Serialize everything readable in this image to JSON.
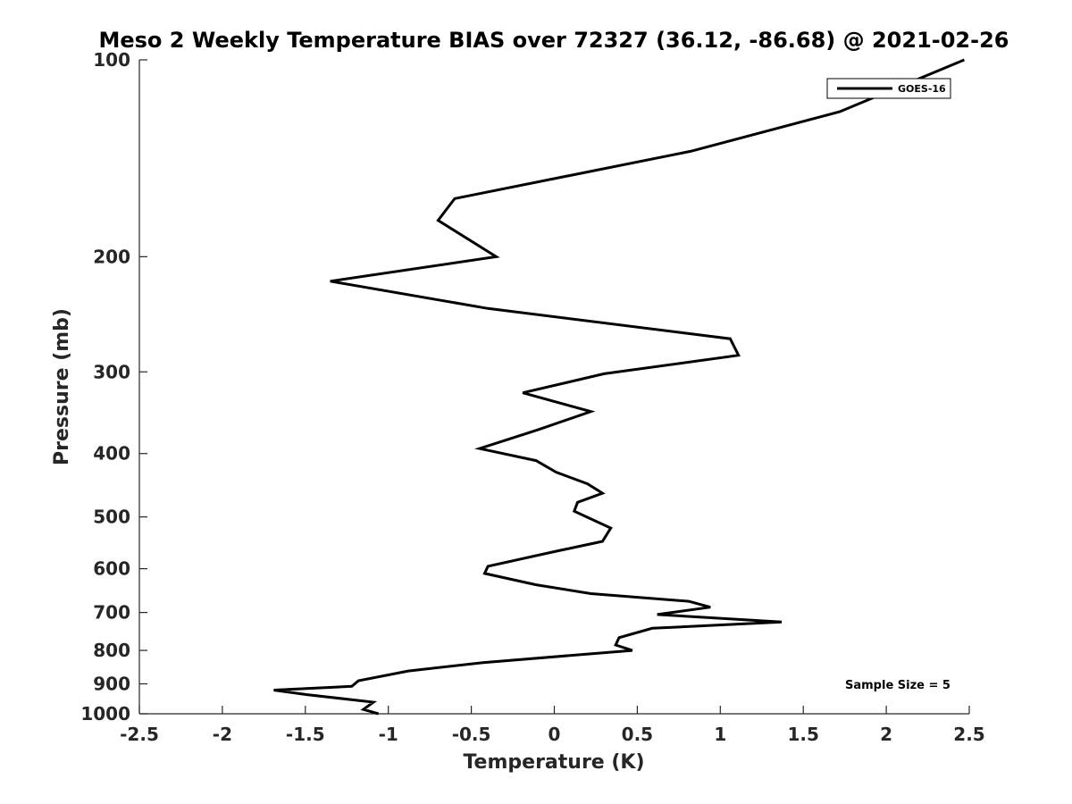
{
  "chart_data": {
    "type": "line",
    "title": "Meso 2 Weekly Temperature BIAS over 72327 (36.12, -86.68) @ 2021-02-26",
    "xlabel": "Temperature (K)",
    "ylabel": "Pressure (mb)",
    "xlim": [
      -2.5,
      2.5
    ],
    "ylim": [
      100,
      1000
    ],
    "y_scale": "log",
    "y_reversed": true,
    "grid": false,
    "x_ticks": [
      -2.5,
      -2,
      -1.5,
      -1,
      -0.5,
      0,
      0.5,
      1,
      1.5,
      2,
      2.5
    ],
    "x_tick_labels": [
      "-2.5",
      "-2",
      "-1.5",
      "-1",
      "-0.5",
      "0",
      "0.5",
      "1",
      "1.5",
      "2",
      "2.5"
    ],
    "y_ticks": [
      100,
      200,
      300,
      400,
      500,
      600,
      700,
      800,
      900,
      1000
    ],
    "y_tick_labels": [
      "100",
      "200",
      "300",
      "400",
      "500",
      "600",
      "700",
      "800",
      "900",
      "1000"
    ],
    "legend_position": "top-right",
    "annotation": "Sample Size = 5",
    "series": [
      {
        "name": "GOES-16",
        "color": "#000000",
        "x": [
          2.47,
          1.72,
          0.82,
          -0.6,
          -0.7,
          -0.35,
          -1.35,
          -0.4,
          1.06,
          1.11,
          0.3,
          -0.19,
          0.22,
          -0.1,
          -0.45,
          -0.11,
          0.01,
          0.2,
          0.29,
          0.14,
          0.12,
          0.34,
          0.29,
          0.0,
          -0.4,
          -0.42,
          -0.11,
          0.22,
          0.81,
          0.94,
          0.62,
          1.37,
          0.59,
          0.39,
          0.37,
          0.47,
          -0.43,
          -0.88,
          -1.18,
          -1.22,
          -1.69,
          -1.49,
          -1.09,
          -1.15,
          -1.06
        ],
        "y": [
          100,
          120,
          138,
          163,
          176,
          200,
          218,
          240,
          267,
          283,
          302,
          323,
          345,
          368,
          393,
          410,
          427,
          445,
          460,
          475,
          490,
          520,
          545,
          565,
          595,
          610,
          635,
          655,
          673,
          687,
          705,
          724,
          740,
          765,
          785,
          800,
          835,
          860,
          890,
          908,
          920,
          935,
          960,
          985,
          1000
        ]
      }
    ]
  }
}
